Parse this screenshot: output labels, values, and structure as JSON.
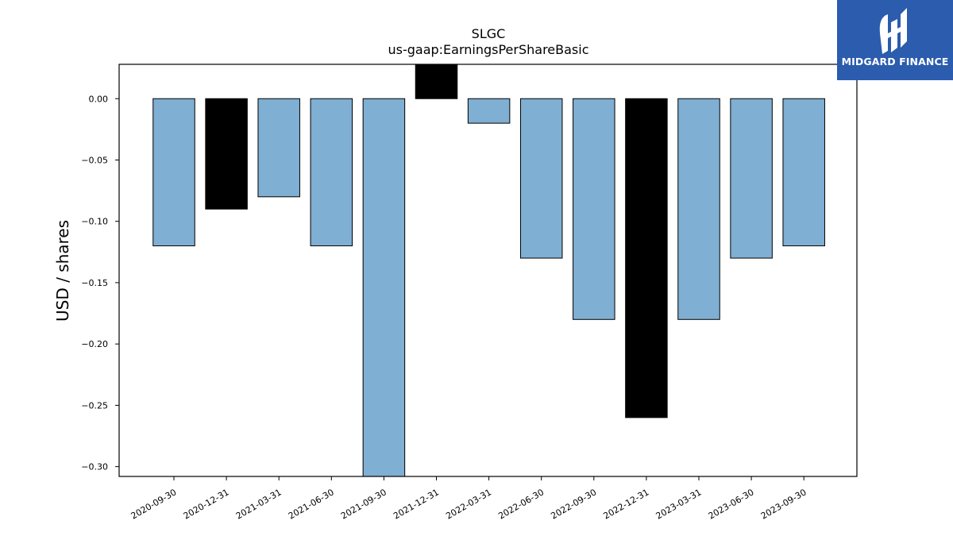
{
  "chart_data": {
    "type": "bar",
    "title": "SLGC",
    "subtitle": "us-gaap:EarningsPerShareBasic",
    "xlabel": "",
    "ylabel": "USD / shares",
    "ylim": [
      -0.308,
      0.028
    ],
    "yticks": [
      0.0,
      -0.05,
      -0.1,
      -0.15,
      -0.2,
      -0.25,
      -0.3
    ],
    "ytick_labels": [
      "0.00",
      "−0.05",
      "−0.10",
      "−0.15",
      "−0.20",
      "−0.25",
      "−0.30"
    ],
    "categories": [
      "2020-09-30",
      "2020-12-31",
      "2021-03-31",
      "2021-06-30",
      "2021-09-30",
      "2021-12-31",
      "2022-03-31",
      "2022-06-30",
      "2022-09-30",
      "2022-12-31",
      "2023-03-31",
      "2023-06-30",
      "2023-09-30"
    ],
    "values": [
      -0.12,
      -0.09,
      -0.08,
      -0.12,
      -0.31,
      0.03,
      -0.02,
      -0.13,
      -0.18,
      -0.26,
      -0.18,
      -0.13,
      -0.12
    ],
    "bar_colors": [
      "#7fafd2",
      "#000000",
      "#7fafd2",
      "#7fafd2",
      "#7fafd2",
      "#000000",
      "#7fafd2",
      "#7fafd2",
      "#7fafd2",
      "#000000",
      "#7fafd2",
      "#7fafd2",
      "#7fafd2"
    ],
    "grid": false,
    "legend": "none"
  },
  "colors": {
    "bar_default": "#7fafd2",
    "bar_highlight": "#000000",
    "logo_background": "#2b5cad",
    "logo_text": "#ffffff"
  },
  "logo": {
    "text": "MIDGARD FINANCE",
    "icon": "midgard-logo-icon"
  }
}
